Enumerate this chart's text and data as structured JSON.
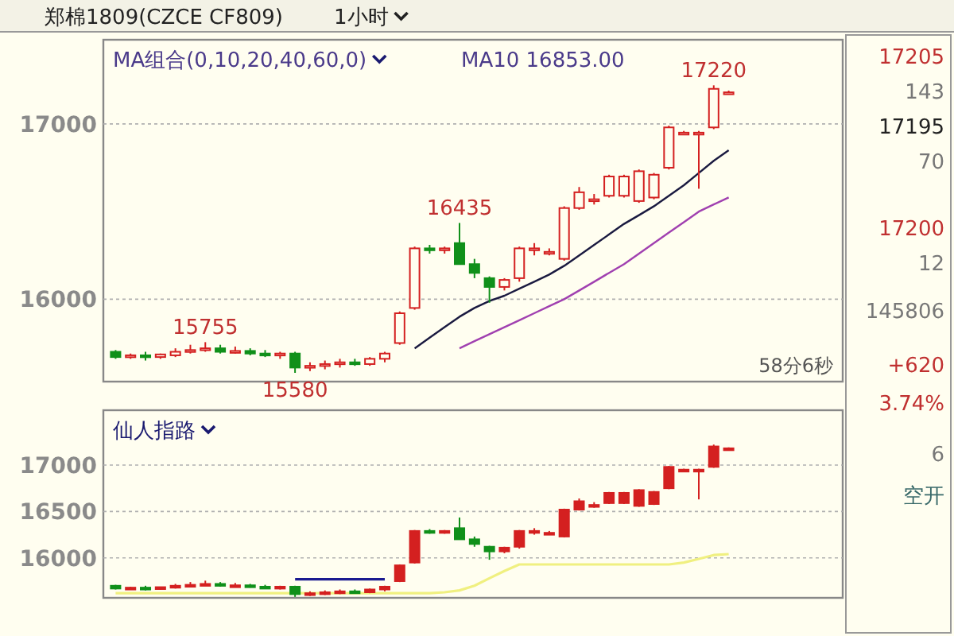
{
  "chart_data": [
    {
      "type": "candlestick",
      "title": "郑棉1809(CZCE CF809)",
      "subtitle": "1小时",
      "categories": [
        null,
        null,
        null,
        null,
        null,
        null,
        null,
        null,
        null,
        null,
        null,
        null,
        null,
        null,
        null,
        null,
        null,
        null,
        null,
        null,
        null,
        null,
        null,
        null,
        null,
        null,
        null,
        null,
        null,
        null,
        null,
        null,
        null,
        null,
        null,
        null,
        null,
        null,
        null,
        null,
        null,
        null
      ],
      "ohlc": [
        [
          15700,
          15710,
          15660,
          15670
        ],
        [
          15670,
          15690,
          15660,
          15680
        ],
        [
          15680,
          15700,
          15650,
          15670
        ],
        [
          15670,
          15690,
          15660,
          15685
        ],
        [
          15680,
          15720,
          15670,
          15700
        ],
        [
          15700,
          15740,
          15690,
          15710
        ],
        [
          15710,
          15755,
          15700,
          15720
        ],
        [
          15720,
          15740,
          15690,
          15700
        ],
        [
          15700,
          15730,
          15690,
          15705
        ],
        [
          15705,
          15720,
          15680,
          15690
        ],
        [
          15690,
          15710,
          15670,
          15680
        ],
        [
          15680,
          15700,
          15660,
          15690
        ],
        [
          15690,
          15700,
          15580,
          15610
        ],
        [
          15610,
          15640,
          15590,
          15620
        ],
        [
          15620,
          15650,
          15600,
          15630
        ],
        [
          15630,
          15660,
          15610,
          15640
        ],
        [
          15640,
          15660,
          15620,
          15630
        ],
        [
          15630,
          15670,
          15620,
          15660
        ],
        [
          15660,
          15700,
          15640,
          15690
        ],
        [
          15750,
          15930,
          15740,
          15920
        ],
        [
          15950,
          16300,
          15940,
          16290
        ],
        [
          16290,
          16310,
          16260,
          16280
        ],
        [
          16280,
          16300,
          16260,
          16290
        ],
        [
          16320,
          16435,
          16200,
          16200
        ],
        [
          16200,
          16230,
          16120,
          16150
        ],
        [
          16120,
          16130,
          15980,
          16070
        ],
        [
          16070,
          16120,
          16050,
          16110
        ],
        [
          16120,
          16300,
          16100,
          16290
        ],
        [
          16290,
          16320,
          16250,
          16290
        ],
        [
          16270,
          16290,
          16250,
          16270
        ],
        [
          16230,
          16530,
          16220,
          16520
        ],
        [
          16520,
          16640,
          16510,
          16610
        ],
        [
          16570,
          16600,
          16540,
          16570
        ],
        [
          16590,
          16710,
          16580,
          16700
        ],
        [
          16590,
          16710,
          16580,
          16700
        ],
        [
          16560,
          16740,
          16550,
          16730
        ],
        [
          16580,
          16720,
          16570,
          16710
        ],
        [
          16750,
          16990,
          16740,
          16980
        ],
        [
          16950,
          16960,
          16940,
          16950
        ],
        [
          16950,
          16960,
          16630,
          16950
        ],
        [
          16980,
          17220,
          16970,
          17200
        ],
        [
          17180,
          17190,
          17170,
          17180
        ]
      ],
      "series": [
        {
          "type": "line",
          "color": "#1a1a40",
          "values": [
            null,
            null,
            null,
            null,
            null,
            null,
            null,
            null,
            null,
            null,
            null,
            null,
            null,
            null,
            null,
            null,
            null,
            null,
            null,
            null,
            15720,
            15780,
            15840,
            15900,
            15950,
            15990,
            16020,
            16060,
            16100,
            16140,
            16190,
            16250,
            16310,
            16370,
            16430,
            16480,
            16530,
            16590,
            16650,
            16720,
            16790,
            16850
          ]
        },
        {
          "type": "line",
          "color": "#a040b0",
          "values": [
            null,
            null,
            null,
            null,
            null,
            null,
            null,
            null,
            null,
            null,
            null,
            null,
            null,
            null,
            null,
            null,
            null,
            null,
            null,
            null,
            null,
            null,
            null,
            15720,
            15760,
            15800,
            15840,
            15880,
            15920,
            15960,
            16000,
            16050,
            16100,
            16150,
            16200,
            16260,
            16320,
            16380,
            16440,
            16500,
            16540,
            16580
          ]
        }
      ],
      "ylim": [
        15530,
        17480
      ],
      "yticks": [
        16000,
        17000
      ],
      "grid": "y",
      "annotations": [
        "MA组合(0,10,20,40,60,0)",
        "MA10 16853.00",
        {
          "text": "17220",
          "y": 17220
        },
        {
          "text": "16435",
          "y": 16435
        },
        {
          "text": "15755",
          "y": 15755
        },
        {
          "text": "15580",
          "y": 15580
        },
        "58分6秒"
      ]
    },
    {
      "type": "candlestick",
      "title": "仙人指路",
      "categories": [
        null,
        null,
        null,
        null,
        null,
        null,
        null,
        null,
        null,
        null,
        null,
        null,
        null,
        null,
        null,
        null,
        null,
        null,
        null,
        null,
        null,
        null,
        null,
        null,
        null,
        null,
        null,
        null,
        null,
        null,
        null,
        null,
        null,
        null,
        null,
        null,
        null,
        null,
        null,
        null,
        null,
        null
      ],
      "ohlc": [
        [
          15700,
          15710,
          15660,
          15670
        ],
        [
          15670,
          15690,
          15660,
          15680
        ],
        [
          15680,
          15700,
          15650,
          15670
        ],
        [
          15670,
          15690,
          15660,
          15685
        ],
        [
          15680,
          15720,
          15670,
          15700
        ],
        [
          15700,
          15740,
          15690,
          15710
        ],
        [
          15710,
          15755,
          15700,
          15720
        ],
        [
          15720,
          15740,
          15690,
          15700
        ],
        [
          15700,
          15730,
          15690,
          15705
        ],
        [
          15705,
          15720,
          15680,
          15690
        ],
        [
          15690,
          15710,
          15670,
          15680
        ],
        [
          15680,
          15700,
          15660,
          15690
        ],
        [
          15690,
          15700,
          15580,
          15610
        ],
        [
          15610,
          15640,
          15590,
          15620
        ],
        [
          15620,
          15650,
          15600,
          15630
        ],
        [
          15630,
          15660,
          15610,
          15640
        ],
        [
          15640,
          15660,
          15620,
          15630
        ],
        [
          15630,
          15670,
          15620,
          15660
        ],
        [
          15660,
          15700,
          15640,
          15690
        ],
        [
          15750,
          15930,
          15740,
          15920
        ],
        [
          15950,
          16300,
          15940,
          16290
        ],
        [
          16290,
          16310,
          16260,
          16280
        ],
        [
          16280,
          16300,
          16260,
          16290
        ],
        [
          16320,
          16435,
          16200,
          16200
        ],
        [
          16200,
          16230,
          16120,
          16150
        ],
        [
          16120,
          16130,
          15980,
          16070
        ],
        [
          16070,
          16120,
          16050,
          16110
        ],
        [
          16120,
          16300,
          16100,
          16290
        ],
        [
          16290,
          16320,
          16250,
          16290
        ],
        [
          16270,
          16290,
          16250,
          16270
        ],
        [
          16230,
          16530,
          16220,
          16520
        ],
        [
          16520,
          16640,
          16510,
          16610
        ],
        [
          16570,
          16600,
          16540,
          16570
        ],
        [
          16590,
          16710,
          16580,
          16700
        ],
        [
          16590,
          16710,
          16580,
          16700
        ],
        [
          16560,
          16740,
          16550,
          16730
        ],
        [
          16580,
          16720,
          16570,
          16710
        ],
        [
          16750,
          16990,
          16740,
          16980
        ],
        [
          16950,
          16960,
          16940,
          16950
        ],
        [
          16950,
          16960,
          16630,
          16950
        ],
        [
          16980,
          17220,
          16970,
          17200
        ],
        [
          17180,
          17190,
          17170,
          17180
        ]
      ],
      "series": [
        {
          "type": "line",
          "color": "#f0f080",
          "values": [
            15620,
            15620,
            15620,
            15620,
            15620,
            15620,
            15620,
            15620,
            15620,
            15620,
            15620,
            15620,
            15620,
            15620,
            15620,
            15620,
            15620,
            15620,
            15620,
            15620,
            15620,
            15620,
            15630,
            15650,
            15700,
            15780,
            15860,
            15930,
            15930,
            15930,
            15930,
            15930,
            15930,
            15930,
            15930,
            15930,
            15930,
            15930,
            15950,
            15990,
            16030,
            16040
          ]
        },
        {
          "type": "line",
          "color": "#1a1a90",
          "values": [
            null,
            null,
            null,
            null,
            null,
            null,
            null,
            null,
            null,
            null,
            null,
            null,
            15770,
            15770,
            15770,
            15770,
            15770,
            15770,
            15770,
            null,
            null,
            null,
            null,
            null,
            null,
            null,
            null,
            null,
            null,
            null,
            null,
            null,
            null,
            null,
            null,
            null,
            null,
            null,
            null,
            null,
            null,
            null
          ]
        }
      ],
      "ylim": [
        15570,
        17590
      ],
      "yticks": [
        16000,
        16500,
        17000
      ],
      "grid": "y"
    },
    {
      "type": "other",
      "annotations": [
        "17205",
        "143",
        "17195",
        "70",
        "17200",
        "12",
        "145806",
        "+620",
        "3.74%",
        "6",
        "空开"
      ]
    }
  ]
}
